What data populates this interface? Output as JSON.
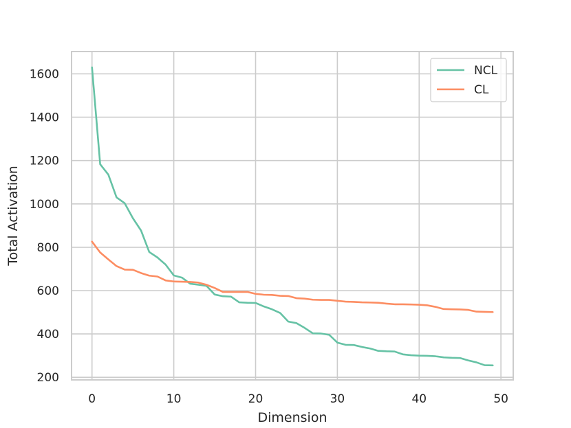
{
  "chart_data": {
    "type": "line",
    "title": "",
    "xlabel": "Dimension",
    "ylabel": "Total Activation",
    "xlim": [
      -2.5,
      51.5
    ],
    "ylim": [
      188,
      1703
    ],
    "xticks": [
      0,
      10,
      20,
      30,
      40,
      50
    ],
    "yticks": [
      200,
      400,
      600,
      800,
      1000,
      1200,
      1400,
      1600
    ],
    "grid": true,
    "legend_position": "upper right",
    "x": [
      0,
      1,
      2,
      3,
      4,
      5,
      6,
      7,
      8,
      9,
      10,
      11,
      12,
      13,
      14,
      15,
      16,
      17,
      18,
      19,
      20,
      21,
      22,
      23,
      24,
      25,
      26,
      27,
      28,
      29,
      30,
      31,
      32,
      33,
      34,
      35,
      36,
      37,
      38,
      39,
      40,
      41,
      42,
      43,
      44,
      45,
      46,
      47,
      48,
      49
    ],
    "series": [
      {
        "name": "NCL",
        "color": "#66c2a5",
        "values": [
          1630,
          1183,
          1135,
          1030,
          1003,
          934,
          877,
          778,
          753,
          720,
          670,
          660,
          632,
          627,
          622,
          582,
          574,
          572,
          546,
          544,
          543,
          527,
          514,
          497,
          457,
          450,
          428,
          403,
          402,
          396,
          360,
          350,
          349,
          340,
          333,
          322,
          320,
          319,
          306,
          302,
          300,
          299,
          297,
          292,
          290,
          289,
          278,
          269,
          256,
          255
        ]
      },
      {
        "name": "CL",
        "color": "#fc8d62",
        "values": [
          826,
          776,
          744,
          713,
          697,
          696,
          681,
          669,
          665,
          647,
          642,
          641,
          640,
          637,
          627,
          612,
          594,
          594,
          594,
          594,
          585,
          581,
          580,
          576,
          575,
          565,
          563,
          558,
          557,
          557,
          553,
          549,
          548,
          546,
          545,
          544,
          540,
          537,
          537,
          536,
          535,
          532,
          525,
          515,
          514,
          513,
          511,
          503,
          502,
          501
        ]
      }
    ]
  }
}
